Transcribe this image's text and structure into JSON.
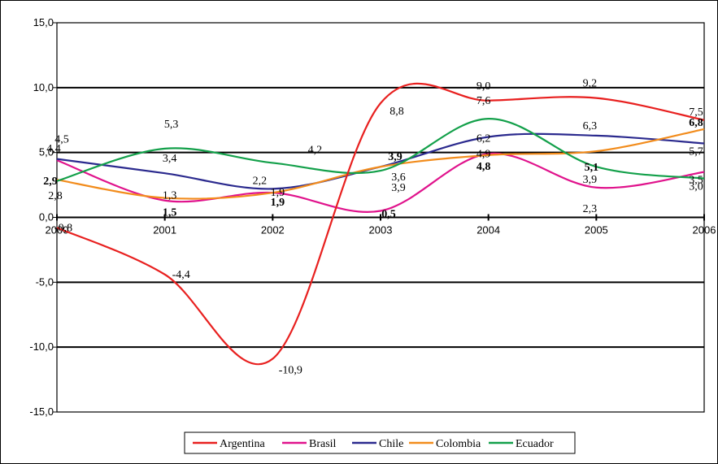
{
  "chart_data": {
    "type": "line",
    "x": [
      "2000",
      "2001",
      "2002",
      "2003",
      "2004",
      "2005",
      "2006"
    ],
    "ylim": [
      -15,
      15
    ],
    "yticks": [
      "15,0",
      "10,0",
      "5,0",
      "0,0",
      "-5,0",
      "-10,0",
      "-15,0"
    ],
    "grid": "horizontal major gridlines",
    "legend_position": "bottom",
    "series": [
      {
        "name": "Argentina",
        "color": "#e8201f",
        "values": [
          -0.8,
          -4.4,
          -10.9,
          8.8,
          9.0,
          9.2,
          7.5
        ]
      },
      {
        "name": "Brasil",
        "color": "#e0138c",
        "values": [
          4.4,
          1.3,
          1.9,
          0.5,
          4.9,
          2.3,
          3.5
        ]
      },
      {
        "name": "Chile",
        "color": "#2b2a8e",
        "values": [
          4.5,
          3.4,
          2.2,
          3.9,
          6.2,
          6.3,
          5.7
        ]
      },
      {
        "name": "Colombia",
        "color": "#f28c1c",
        "values": [
          2.9,
          1.5,
          1.9,
          3.9,
          4.8,
          5.1,
          6.8
        ]
      },
      {
        "name": "Ecuador",
        "color": "#13a04a",
        "values": [
          2.8,
          5.3,
          4.2,
          3.6,
          7.6,
          3.9,
          3.0
        ]
      }
    ],
    "data_labels": [
      {
        "text": "-0,8",
        "x": "2000",
        "y": -0.8,
        "bold": false
      },
      {
        "text": "4,4",
        "x": "2000",
        "y": 4.4,
        "bold": false
      },
      {
        "text": "4,5",
        "x": "2000",
        "y": 4.5,
        "bold": false
      },
      {
        "text": "2,9",
        "x": "2000",
        "y": 2.9,
        "bold": true
      },
      {
        "text": "2,8",
        "x": "2000",
        "y": 2.8,
        "bold": false
      },
      {
        "text": "-4,4",
        "x": "2001",
        "y": -4.4,
        "bold": false
      },
      {
        "text": "1,3",
        "x": "2001",
        "y": 1.3,
        "bold": false
      },
      {
        "text": "3,4",
        "x": "2001",
        "y": 3.4,
        "bold": false
      },
      {
        "text": "1,5",
        "x": "2001",
        "y": 1.5,
        "bold": true
      },
      {
        "text": "5,3",
        "x": "2001",
        "y": 5.3,
        "bold": false
      },
      {
        "text": "-10,9",
        "x": "2002",
        "y": -10.9,
        "bold": false
      },
      {
        "text": "1,9",
        "x": "2002",
        "y": 1.9,
        "bold": false
      },
      {
        "text": "2,2",
        "x": "2002",
        "y": 2.2,
        "bold": false
      },
      {
        "text": "1,9",
        "x": "2002",
        "y": 1.9,
        "bold": true
      },
      {
        "text": "4,2",
        "x": "2002",
        "y": 4.2,
        "bold": false
      },
      {
        "text": "8,8",
        "x": "2003",
        "y": 8.8,
        "bold": false
      },
      {
        "text": "0,5",
        "x": "2003",
        "y": 0.5,
        "bold": true
      },
      {
        "text": "3,9",
        "x": "2003",
        "y": 3.9,
        "bold": false
      },
      {
        "text": "3,9",
        "x": "2003",
        "y": 3.9,
        "bold": true
      },
      {
        "text": "3,6",
        "x": "2003",
        "y": 3.6,
        "bold": false
      },
      {
        "text": "9,0",
        "x": "2004",
        "y": 9.0,
        "bold": false
      },
      {
        "text": "4,9",
        "x": "2004",
        "y": 4.9,
        "bold": false
      },
      {
        "text": "6,2",
        "x": "2004",
        "y": 6.2,
        "bold": false
      },
      {
        "text": "4,8",
        "x": "2004",
        "y": 4.8,
        "bold": true
      },
      {
        "text": "7,6",
        "x": "2004",
        "y": 7.6,
        "bold": false
      },
      {
        "text": "9,2",
        "x": "2005",
        "y": 9.2,
        "bold": false
      },
      {
        "text": "2,3",
        "x": "2005",
        "y": 2.3,
        "bold": false
      },
      {
        "text": "6,3",
        "x": "2005",
        "y": 6.3,
        "bold": false
      },
      {
        "text": "5,1",
        "x": "2005",
        "y": 5.1,
        "bold": true
      },
      {
        "text": "3,9",
        "x": "2005",
        "y": 3.9,
        "bold": false
      },
      {
        "text": "7,5",
        "x": "2006",
        "y": 7.5,
        "bold": false
      },
      {
        "text": "3,5",
        "x": "2006",
        "y": 3.5,
        "bold": false
      },
      {
        "text": "5,7",
        "x": "2006",
        "y": 5.7,
        "bold": false
      },
      {
        "text": "6,8",
        "x": "2006",
        "y": 6.8,
        "bold": true
      },
      {
        "text": "3,0",
        "x": "2006",
        "y": 3.0,
        "bold": false
      }
    ]
  }
}
